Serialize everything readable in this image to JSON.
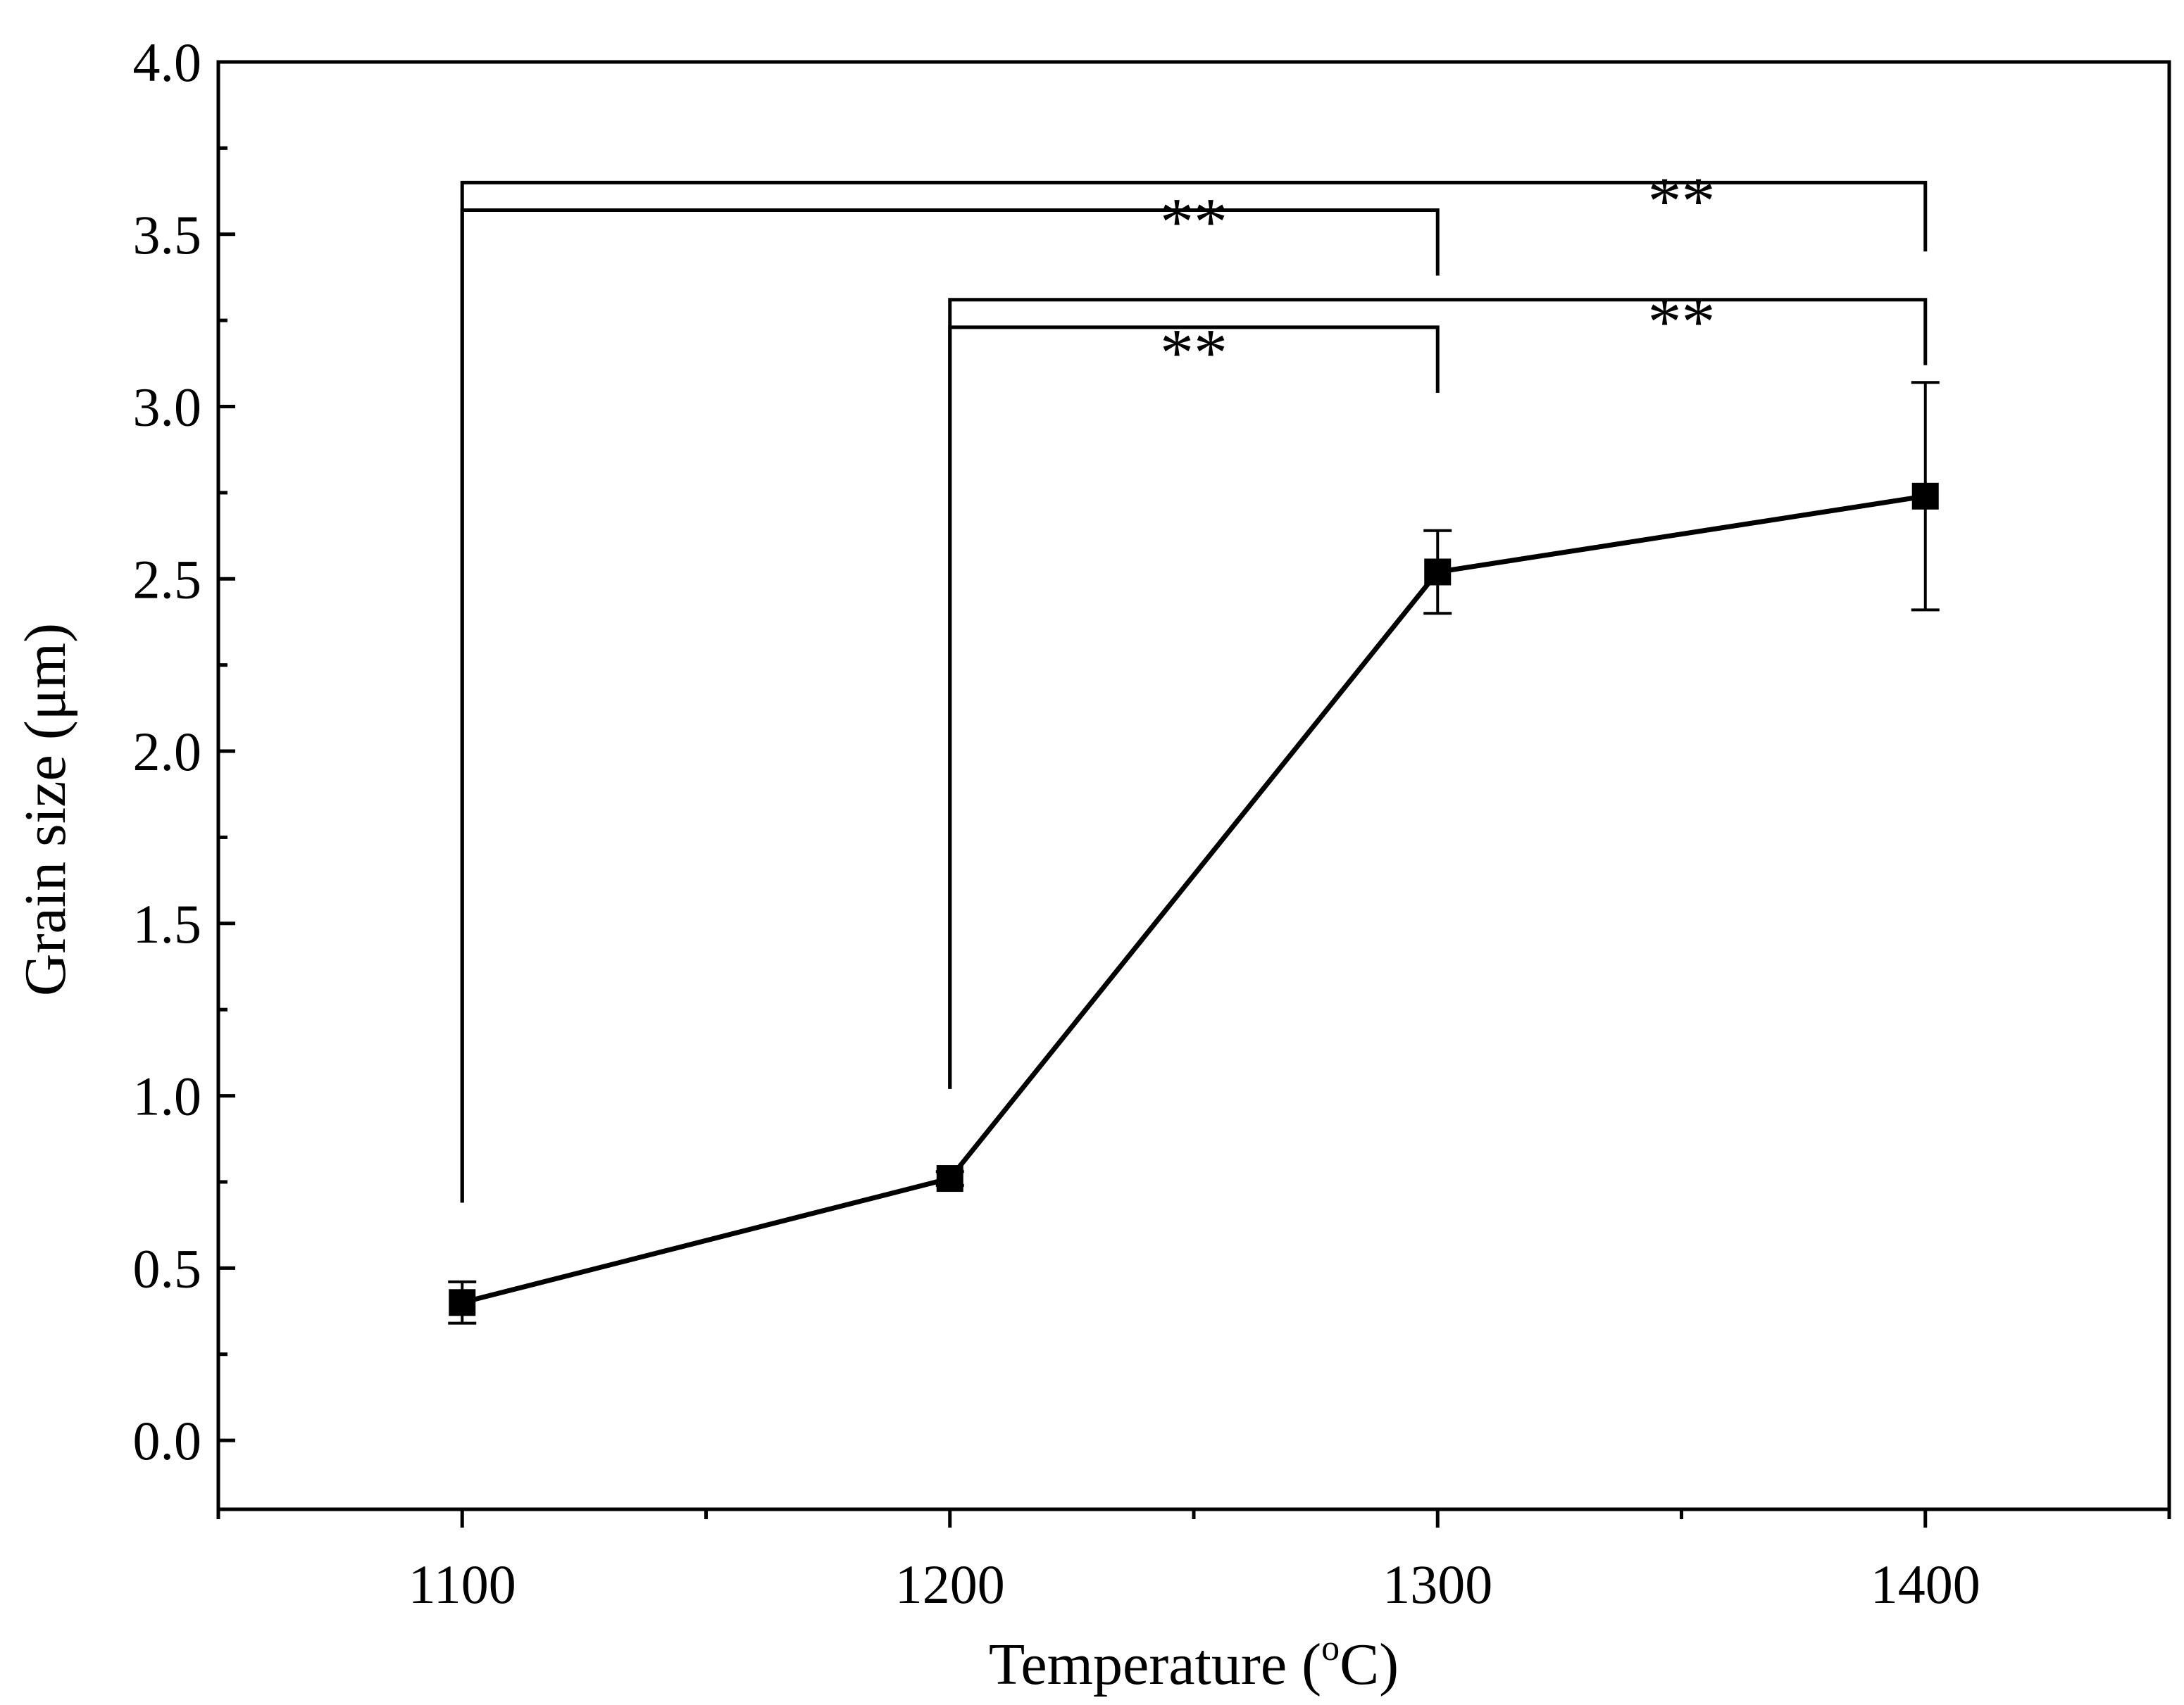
{
  "chart_data": {
    "type": "line",
    "xlabel": "Temperature (",
    "xlabel_sup": "o",
    "xlabel_unit": "C)",
    "ylabel": "Grain size (μm)",
    "xlim": [
      1050,
      1450
    ],
    "ylim": [
      -0.2,
      4.0
    ],
    "x_ticks": [
      1100,
      1200,
      1300,
      1400
    ],
    "x_tick_labels": [
      "1100",
      "1200",
      "1300",
      "1400"
    ],
    "x_minor_ticks": [
      1050,
      1150,
      1250,
      1350,
      1450
    ],
    "y_ticks": [
      0.0,
      0.5,
      1.0,
      1.5,
      2.0,
      2.5,
      3.0,
      3.5,
      4.0
    ],
    "y_tick_labels": [
      "0.0",
      "0.5",
      "1.0",
      "1.5",
      "2.0",
      "2.5",
      "3.0",
      "3.5",
      "4.0"
    ],
    "y_minor_ticks": [
      0.25,
      0.75,
      1.25,
      1.75,
      2.25,
      2.75,
      3.25,
      3.75
    ],
    "grid": false,
    "legend": "none",
    "series": [
      {
        "x": [
          1100,
          1200,
          1300,
          1400
        ],
        "y": [
          0.4,
          0.76,
          2.52,
          2.74
        ],
        "error": [
          0.06,
          0.02,
          0.12,
          0.33
        ],
        "marker": "square",
        "color": "#000000"
      }
    ],
    "significance": [
      {
        "x1": 1100,
        "x2": 1400,
        "y": 3.65,
        "left_drop_to": 0.69,
        "right_drop_to": 3.45,
        "label": "**",
        "label_x": 1350,
        "label_y": 3.53
      },
      {
        "x1": 1100,
        "x2": 1300,
        "y": 3.57,
        "left_drop_to": 0.69,
        "right_drop_to": 3.38,
        "label": "**",
        "label_x": 1250,
        "label_y": 3.47
      },
      {
        "x1": 1200,
        "x2": 1400,
        "y": 3.31,
        "left_drop_to": 1.02,
        "right_drop_to": 3.12,
        "label": "**",
        "label_x": 1350,
        "label_y": 3.18
      },
      {
        "x1": 1200,
        "x2": 1300,
        "y": 3.23,
        "left_drop_to": 1.02,
        "right_drop_to": 3.04,
        "label": "**",
        "label_x": 1250,
        "label_y": 3.09
      }
    ]
  }
}
